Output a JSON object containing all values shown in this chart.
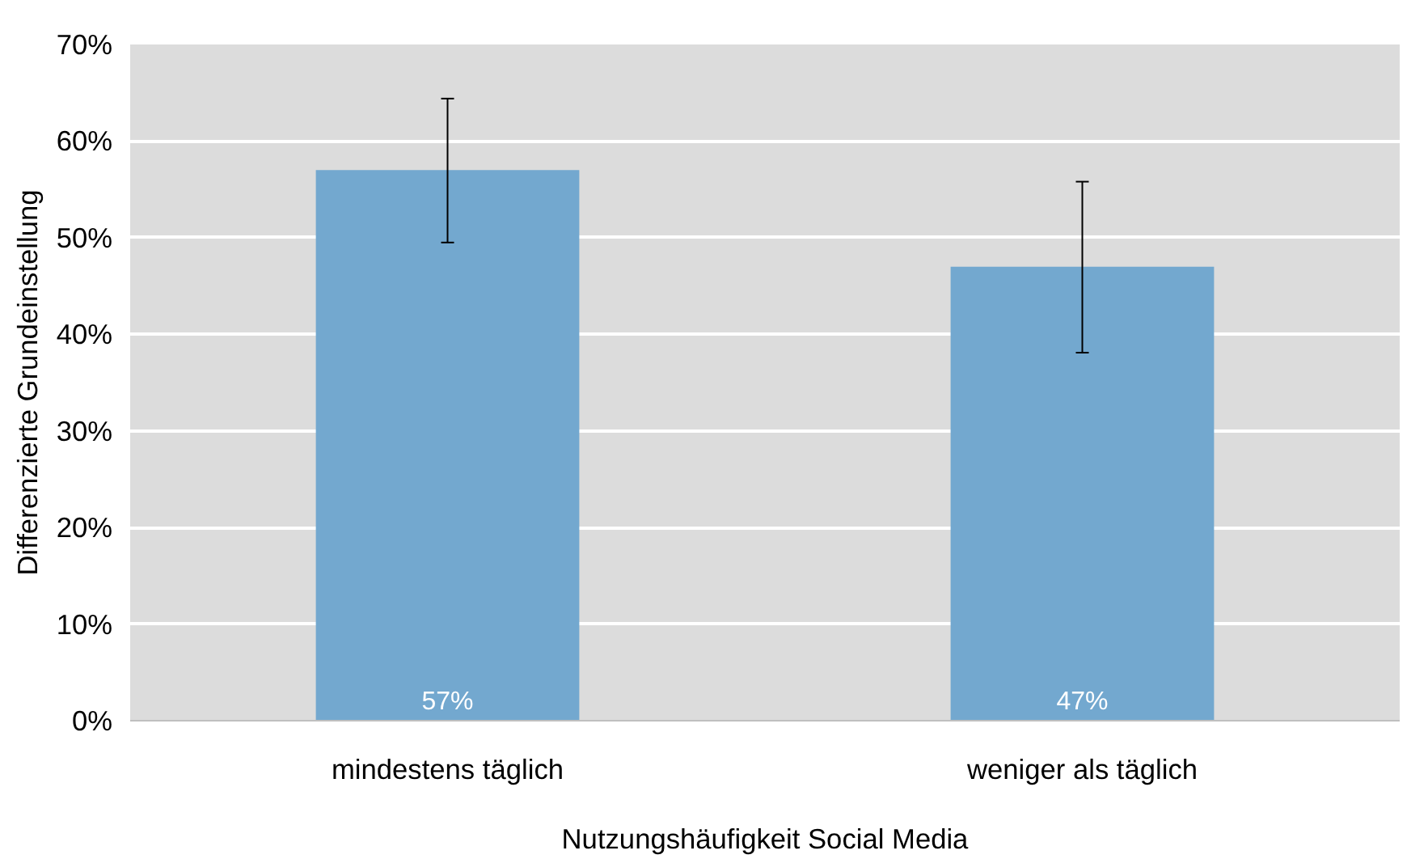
{
  "chart_data": {
    "type": "bar",
    "xlabel": "Nutzungshäufigkeit Social Media",
    "ylabel": "Differenzierte Grundeinstellung",
    "categories": [
      "mindestens täglich",
      "weniger als täglich"
    ],
    "values": [
      57,
      47
    ],
    "color": "#73a8cf",
    "errors": [
      [
        49.5,
        64.4
      ],
      [
        38.1,
        55.8
      ]
    ],
    "value_labels": [
      "57%",
      "47%"
    ],
    "ylim": [
      0,
      70
    ],
    "yticks": [
      {
        "value": 0,
        "label": "0%"
      },
      {
        "value": 10,
        "label": "10%"
      },
      {
        "value": 20,
        "label": "20%"
      },
      {
        "value": 30,
        "label": "30%"
      },
      {
        "value": 40,
        "label": "40%"
      },
      {
        "value": 50,
        "label": "50%"
      },
      {
        "value": 60,
        "label": "60%"
      },
      {
        "value": 70,
        "label": "70%"
      }
    ],
    "grid": "y"
  }
}
